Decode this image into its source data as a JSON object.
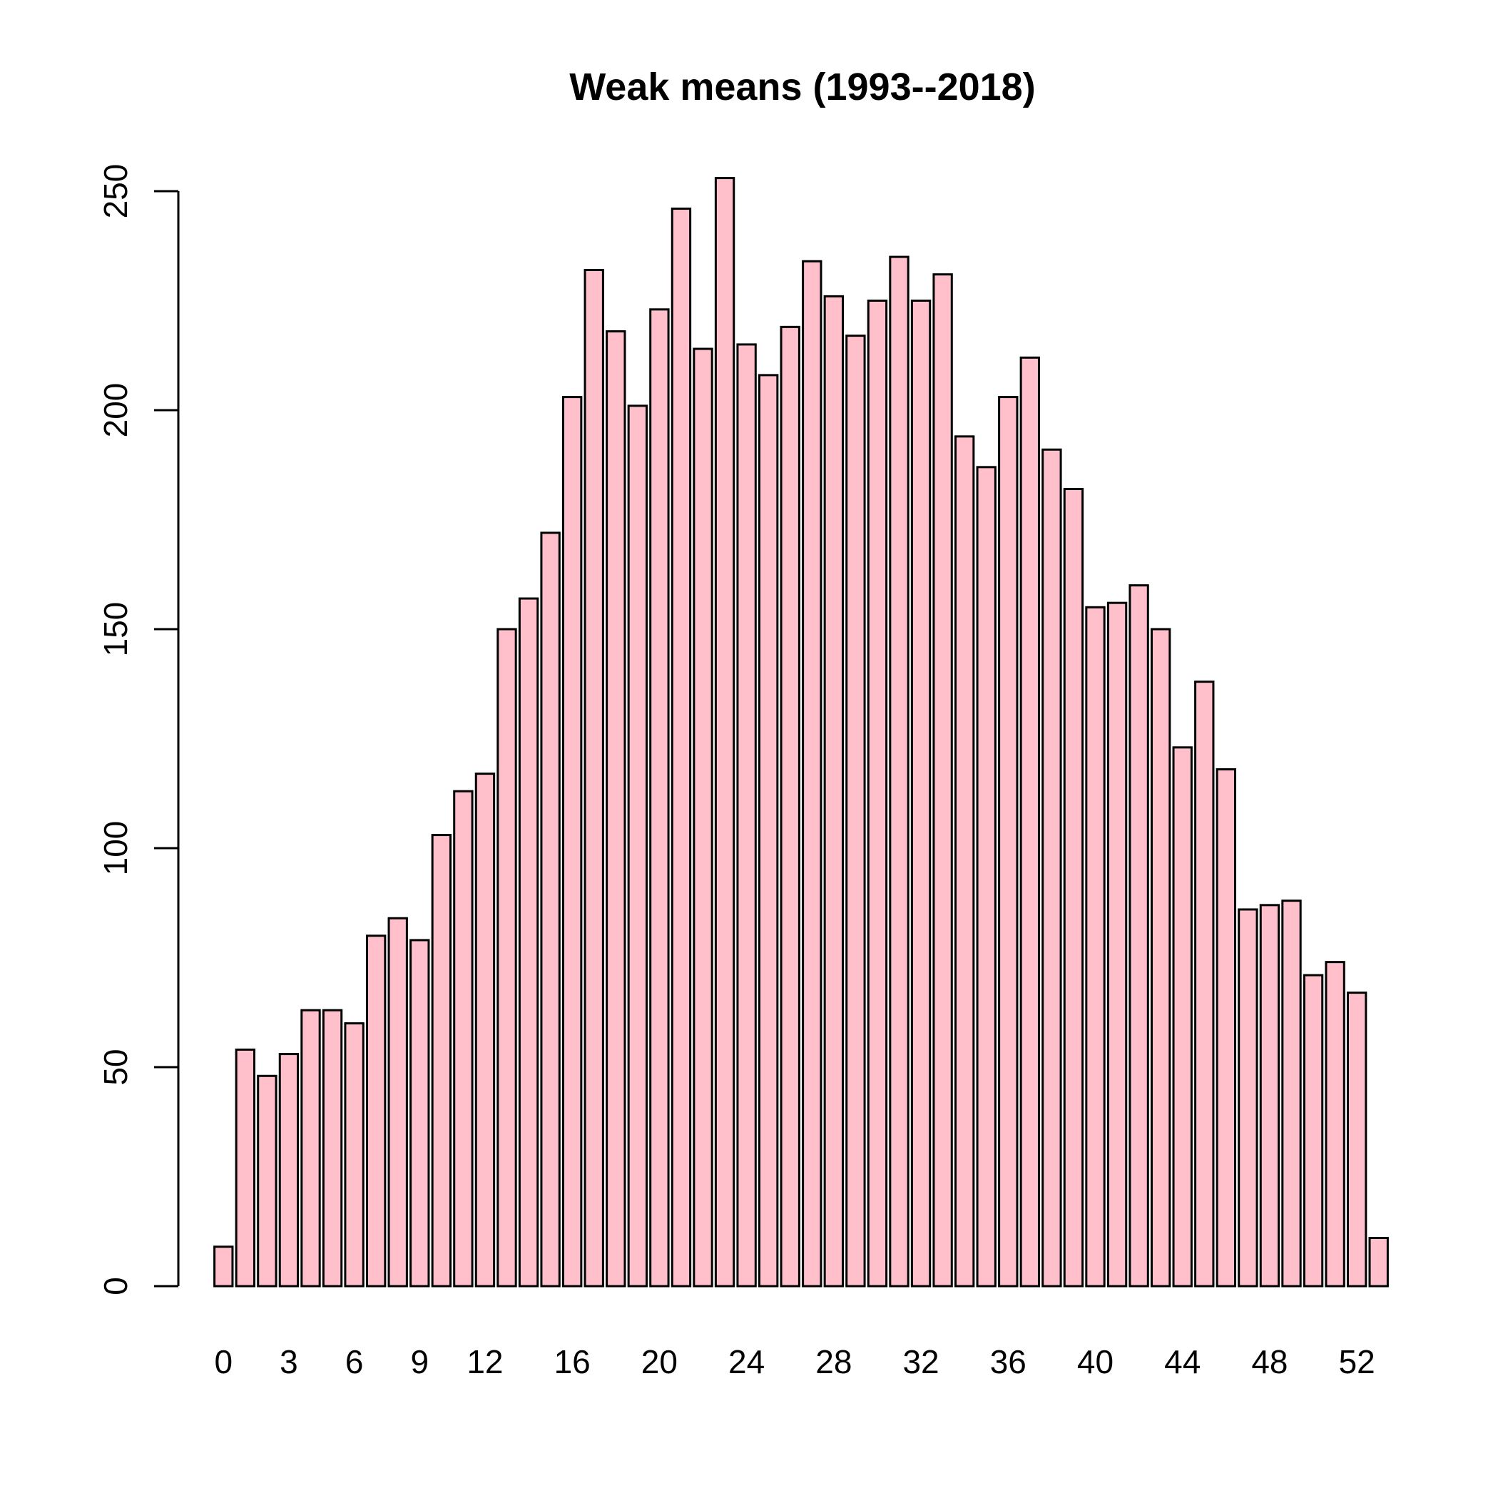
{
  "chart_data": {
    "type": "bar",
    "title": "Weak means (1993--2018)",
    "xlabel": "",
    "ylabel": "",
    "ylim": [
      0,
      250
    ],
    "y_ticks": [
      0,
      50,
      100,
      150,
      200,
      250
    ],
    "grid": false,
    "legend": "none",
    "bar_color": "#ffc0cb",
    "border_color": "#000000",
    "categories": [
      "0",
      "1",
      "2",
      "3",
      "4",
      "5",
      "6",
      "7",
      "8",
      "9",
      "10",
      "11",
      "12",
      "13",
      "14",
      "15",
      "16",
      "17",
      "18",
      "19",
      "20",
      "21",
      "22",
      "23",
      "24",
      "25",
      "26",
      "27",
      "28",
      "29",
      "30",
      "31",
      "32",
      "33",
      "34",
      "35",
      "36",
      "37",
      "38",
      "39",
      "40",
      "41",
      "42",
      "43",
      "44",
      "45",
      "46",
      "47",
      "48",
      "49",
      "50",
      "51",
      "52",
      "53"
    ],
    "x_tick_labels": [
      "0",
      "3",
      "6",
      "9",
      "12",
      "16",
      "20",
      "24",
      "28",
      "32",
      "36",
      "40",
      "44",
      "48",
      "52"
    ],
    "values": [
      9,
      54,
      48,
      53,
      63,
      63,
      60,
      80,
      84,
      79,
      103,
      113,
      117,
      150,
      157,
      172,
      203,
      232,
      218,
      201,
      223,
      246,
      214,
      253,
      215,
      208,
      219,
      234,
      226,
      217,
      225,
      235,
      225,
      231,
      194,
      187,
      203,
      212,
      191,
      182,
      155,
      156,
      160,
      150,
      123,
      138,
      118,
      86,
      87,
      88,
      71,
      74,
      67,
      11
    ]
  }
}
